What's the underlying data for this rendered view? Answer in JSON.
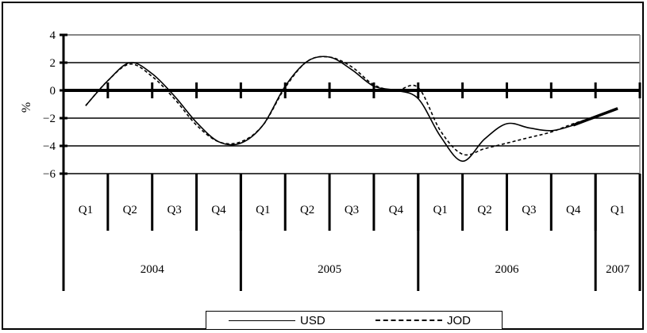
{
  "chart_data": {
    "type": "line",
    "title": "",
    "xlabel": "",
    "ylabel": "%",
    "ylim": [
      -6,
      4
    ],
    "y_ticks": [
      "4",
      "2",
      "0",
      "-2",
      "-4",
      "-6"
    ],
    "grid": true,
    "legend_position": "bottom",
    "quarters": [
      "Q1",
      "Q2",
      "Q3",
      "Q4",
      "Q1",
      "Q2",
      "Q3",
      "Q4",
      "Q1",
      "Q2",
      "Q3",
      "Q4",
      "Q1"
    ],
    "years": [
      {
        "label": "2004",
        "quarters": 4
      },
      {
        "label": "2005",
        "quarters": 4
      },
      {
        "label": "2006",
        "quarters": 4
      },
      {
        "label": "2007",
        "quarters": 1
      }
    ],
    "x": [
      0,
      0.5,
      1,
      1.5,
      2,
      2.5,
      3,
      3.5,
      4,
      4.5,
      5,
      5.5,
      6,
      6.5,
      7,
      7.5,
      8,
      8.5,
      9,
      9.5,
      10,
      10.5,
      11,
      11.5,
      12,
      12.5
    ],
    "series": [
      {
        "name": "USD",
        "style": "solid",
        "values": [
          -1.1,
          0.7,
          2.0,
          1.2,
          -0.4,
          -2.3,
          -3.7,
          -3.8,
          -2.5,
          0.3,
          2.1,
          2.4,
          1.5,
          0.3,
          0.0,
          -0.6,
          -3.3,
          -5.1,
          -3.5,
          -2.4,
          -2.7,
          -2.9,
          -2.5,
          -1.9,
          -1.3,
          null
        ]
      },
      {
        "name": "JOD",
        "style": "dotted",
        "values": [
          -1.1,
          0.7,
          1.9,
          1.0,
          -0.6,
          -2.5,
          -3.7,
          -3.7,
          -2.5,
          0.2,
          2.1,
          2.4,
          1.7,
          0.4,
          0.0,
          0.2,
          -2.9,
          -4.6,
          -4.2,
          -3.8,
          -3.4,
          -3.0,
          -2.4,
          -1.9,
          -1.3,
          null
        ]
      }
    ]
  },
  "legend": {
    "usd_label": "USD",
    "jod_label": "JOD"
  }
}
